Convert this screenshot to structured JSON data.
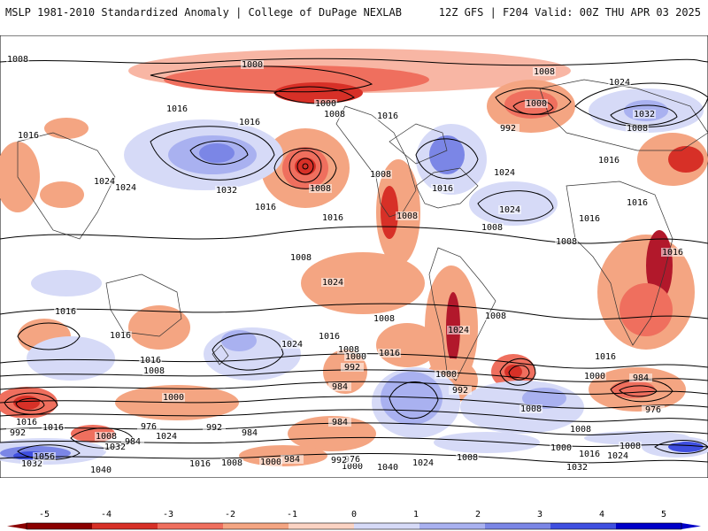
{
  "header": {
    "title_left": "MSLP 1981-2010 Standardized Anomaly | College of DuPage NEXLAB",
    "title_right": "12Z GFS | F204 Valid: 00Z THU APR 03 2025"
  },
  "colorbar": {
    "ticks": [
      "-5",
      "-4",
      "-3",
      "-2",
      "-1",
      "0",
      "1",
      "2",
      "3",
      "4",
      "5"
    ],
    "colors": [
      "#8b0000",
      "#d73027",
      "#ef6f5e",
      "#f4a582",
      "#fbd3c3",
      "#ffffff",
      "#d6daf7",
      "#a9b1f0",
      "#7b86e6",
      "#3f4fe0",
      "#0000c8"
    ]
  },
  "isobar_labels": [
    "1008",
    "1000",
    "1008",
    "1000",
    "1008",
    "1016",
    "1024",
    "1000",
    "992",
    "1032",
    "1008",
    "1016",
    "1016",
    "1016",
    "1016",
    "1024",
    "1032",
    "1024",
    "1016",
    "1008",
    "1008",
    "1016",
    "1024",
    "1016",
    "1008",
    "1024",
    "1016",
    "1008",
    "1016",
    "1008",
    "1016",
    "1008",
    "1024",
    "1016",
    "1016",
    "1008",
    "1016",
    "1024",
    "1008",
    "1016",
    "1008",
    "1024",
    "1016",
    "1008",
    "1000",
    "992",
    "984",
    "1000",
    "992",
    "1008",
    "1016",
    "1000",
    "984",
    "976",
    "1008",
    "1016",
    "1000",
    "976",
    "992",
    "984",
    "1008",
    "992",
    "984",
    "1016",
    "984",
    "1000",
    "1032",
    "1024",
    "1056",
    "1032",
    "1040",
    "1016",
    "1008",
    "1000",
    "984",
    "976",
    "992",
    "1040",
    "1024",
    "1008",
    "1000",
    "1016",
    "1024",
    "1008",
    "1032"
  ]
}
